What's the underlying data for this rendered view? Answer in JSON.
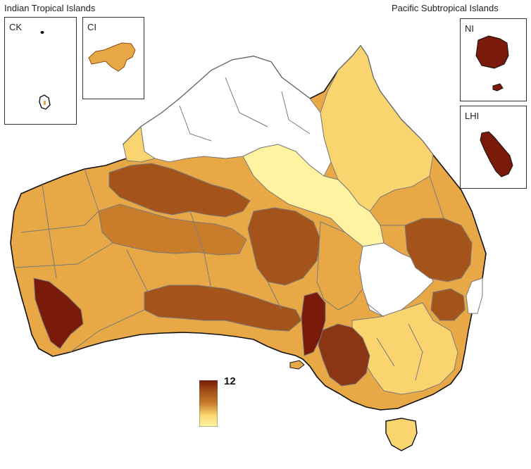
{
  "headers": {
    "left": "Indian Tropical Islands",
    "right": "Pacific Subtropical Islands"
  },
  "insets": {
    "ck": "CK",
    "ci": "CI",
    "ni": "NI",
    "lhi": "LHI"
  },
  "legend": {
    "max_label": "12",
    "colors": [
      "#7a1a0a",
      "#a4541a",
      "#c97d2b",
      "#e8a846",
      "#fad56f",
      "#fff7a8"
    ]
  },
  "palette": {
    "no_data": "#ffffff",
    "border": "#7a7a7a",
    "coast": "#111111"
  }
}
